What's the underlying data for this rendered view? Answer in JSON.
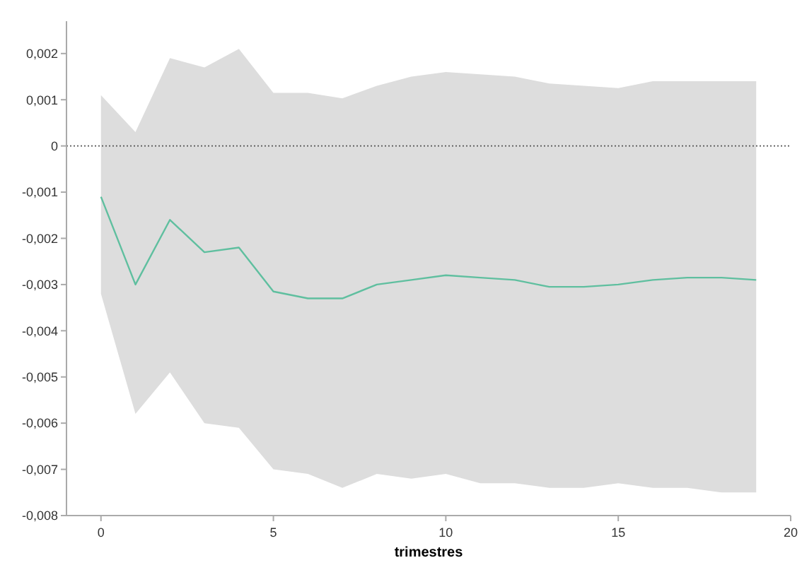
{
  "chart_data": {
    "type": "line",
    "xlabel": "trimestres",
    "x": [
      0,
      1,
      2,
      3,
      4,
      5,
      6,
      7,
      8,
      9,
      10,
      11,
      12,
      13,
      14,
      15,
      16,
      17,
      18,
      19
    ],
    "series": [
      {
        "color": "#5fbf9f",
        "values": [
          -0.0011,
          -0.003,
          -0.0016,
          -0.0023,
          -0.0022,
          -0.00315,
          -0.0033,
          -0.0033,
          -0.003,
          -0.0029,
          -0.0028,
          -0.00285,
          -0.0029,
          -0.00305,
          -0.00305,
          -0.003,
          -0.0029,
          -0.00285,
          -0.00285,
          -0.0029
        ],
        "lower": [
          -0.0032,
          -0.0058,
          -0.0049,
          -0.006,
          -0.0061,
          -0.007,
          -0.0071,
          -0.0074,
          -0.0071,
          -0.0072,
          -0.0071,
          -0.0073,
          -0.0073,
          -0.0074,
          -0.0074,
          -0.0073,
          -0.0074,
          -0.0074,
          -0.0075,
          -0.0075
        ],
        "upper": [
          0.0011,
          0.0003,
          0.0019,
          0.0017,
          0.0021,
          0.00115,
          0.00115,
          0.00103,
          0.0013,
          0.0015,
          0.0016,
          0.00155,
          0.0015,
          0.00135,
          0.0013,
          0.00125,
          0.0014,
          0.0014,
          0.0014,
          0.0014
        ]
      }
    ],
    "xlim": [
      -1,
      20
    ],
    "xticks": [
      0,
      5,
      10,
      15,
      20
    ],
    "ylim": [
      -0.008,
      0.0027
    ],
    "yticks": [
      {
        "value": -0.008,
        "label": "-0,008"
      },
      {
        "value": -0.007,
        "label": "-0,007"
      },
      {
        "value": -0.006,
        "label": "-0,006"
      },
      {
        "value": -0.005,
        "label": "-0,005"
      },
      {
        "value": -0.004,
        "label": "-0,004"
      },
      {
        "value": -0.003,
        "label": "-0,003"
      },
      {
        "value": -0.002,
        "label": "-0,002"
      },
      {
        "value": -0.001,
        "label": "-0,001"
      },
      {
        "value": 0,
        "label": "0"
      },
      {
        "value": 0.001,
        "label": "0,001"
      },
      {
        "value": 0.002,
        "label": "0,002"
      }
    ],
    "ref_lines": [
      {
        "axis": "y",
        "value": 0,
        "line_style": "dotted",
        "color": "#555555"
      }
    ]
  }
}
